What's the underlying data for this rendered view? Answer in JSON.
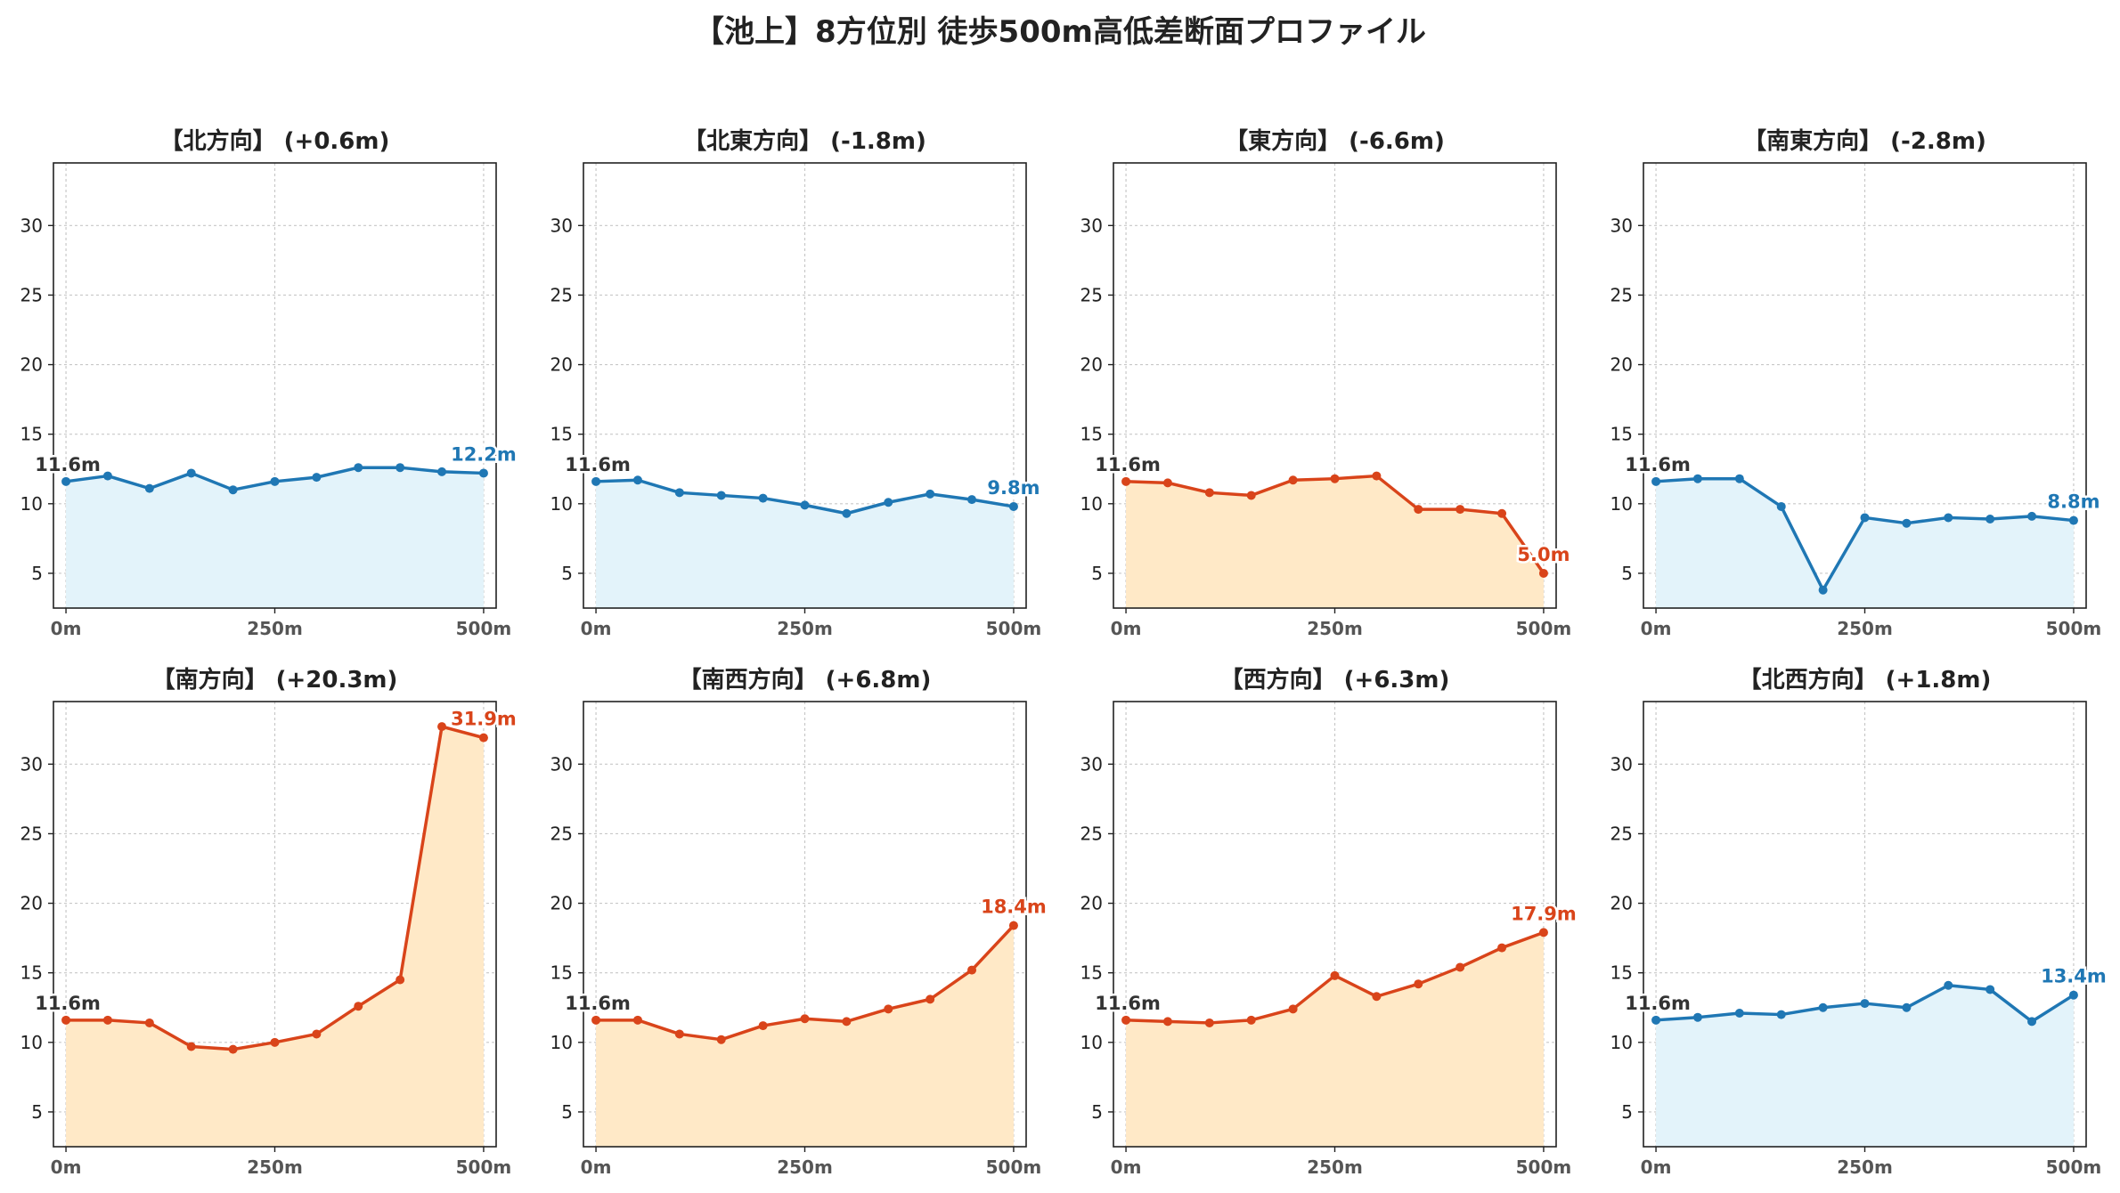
{
  "title": "【池上】8方位別 徒歩500m高低差断面プロファイル",
  "colors": {
    "up_line": "#d9441a",
    "up_fill": "#ffe9c7",
    "down_line": "#1f77b4",
    "down_fill": "#e3f3fa",
    "start_label": "#333333"
  },
  "chart_data": [
    {
      "type": "line",
      "title": "【北方向】 (+0.6m)",
      "x": [
        0,
        50,
        100,
        150,
        200,
        250,
        300,
        350,
        400,
        450,
        500
      ],
      "y": [
        11.6,
        12.0,
        11.1,
        12.2,
        11.0,
        11.6,
        11.9,
        12.6,
        12.6,
        12.3,
        12.2
      ],
      "start_label": "11.6m",
      "end_label": "12.2m",
      "trend": "down",
      "xticks": [
        "0m",
        "250m",
        "500m"
      ],
      "yticks": [
        5,
        10,
        15,
        20,
        25,
        30
      ],
      "ylim": [
        2.5,
        34.5
      ],
      "xlim": [
        -15,
        515
      ],
      "grid": true
    },
    {
      "type": "line",
      "title": "【北東方向】 (-1.8m)",
      "x": [
        0,
        50,
        100,
        150,
        200,
        250,
        300,
        350,
        400,
        450,
        500
      ],
      "y": [
        11.6,
        11.7,
        10.8,
        10.6,
        10.4,
        9.9,
        9.3,
        10.1,
        10.7,
        10.3,
        9.8
      ],
      "start_label": "11.6m",
      "end_label": "9.8m",
      "trend": "down",
      "xticks": [
        "0m",
        "250m",
        "500m"
      ],
      "yticks": [
        5,
        10,
        15,
        20,
        25,
        30
      ],
      "ylim": [
        2.5,
        34.5
      ],
      "xlim": [
        -15,
        515
      ],
      "grid": true
    },
    {
      "type": "line",
      "title": "【東方向】 (-6.6m)",
      "x": [
        0,
        50,
        100,
        150,
        200,
        250,
        300,
        350,
        400,
        450,
        500
      ],
      "y": [
        11.6,
        11.5,
        10.8,
        10.6,
        11.7,
        11.8,
        12.0,
        9.6,
        9.6,
        9.3,
        5.0
      ],
      "start_label": "11.6m",
      "end_label": "5.0m",
      "trend": "up",
      "xticks": [
        "0m",
        "250m",
        "500m"
      ],
      "yticks": [
        5,
        10,
        15,
        20,
        25,
        30
      ],
      "ylim": [
        2.5,
        34.5
      ],
      "xlim": [
        -15,
        515
      ],
      "grid": true
    },
    {
      "type": "line",
      "title": "【南東方向】 (-2.8m)",
      "x": [
        0,
        50,
        100,
        150,
        200,
        250,
        300,
        350,
        400,
        450,
        500
      ],
      "y": [
        11.6,
        11.8,
        11.8,
        9.8,
        3.8,
        9.0,
        8.6,
        9.0,
        8.9,
        9.1,
        8.8
      ],
      "start_label": "11.6m",
      "end_label": "8.8m",
      "trend": "down",
      "xticks": [
        "0m",
        "250m",
        "500m"
      ],
      "yticks": [
        5,
        10,
        15,
        20,
        25,
        30
      ],
      "ylim": [
        2.5,
        34.5
      ],
      "xlim": [
        -15,
        515
      ],
      "grid": true
    },
    {
      "type": "line",
      "title": "【南方向】 (+20.3m)",
      "x": [
        0,
        50,
        100,
        150,
        200,
        250,
        300,
        350,
        400,
        450,
        500
      ],
      "y": [
        11.6,
        11.6,
        11.4,
        9.7,
        9.5,
        10.0,
        10.6,
        12.6,
        14.5,
        32.7,
        31.9
      ],
      "start_label": "11.6m",
      "end_label": "31.9m",
      "trend": "up",
      "xticks": [
        "0m",
        "250m",
        "500m"
      ],
      "yticks": [
        5,
        10,
        15,
        20,
        25,
        30
      ],
      "ylim": [
        2.5,
        34.5
      ],
      "xlim": [
        -15,
        515
      ],
      "grid": true
    },
    {
      "type": "line",
      "title": "【南西方向】 (+6.8m)",
      "x": [
        0,
        50,
        100,
        150,
        200,
        250,
        300,
        350,
        400,
        450,
        500
      ],
      "y": [
        11.6,
        11.6,
        10.6,
        10.2,
        11.2,
        11.7,
        11.5,
        12.4,
        13.1,
        15.2,
        18.4
      ],
      "start_label": "11.6m",
      "end_label": "18.4m",
      "trend": "up",
      "xticks": [
        "0m",
        "250m",
        "500m"
      ],
      "yticks": [
        5,
        10,
        15,
        20,
        25,
        30
      ],
      "ylim": [
        2.5,
        34.5
      ],
      "xlim": [
        -15,
        515
      ],
      "grid": true
    },
    {
      "type": "line",
      "title": "【西方向】 (+6.3m)",
      "x": [
        0,
        50,
        100,
        150,
        200,
        250,
        300,
        350,
        400,
        450,
        500
      ],
      "y": [
        11.6,
        11.5,
        11.4,
        11.6,
        12.4,
        14.8,
        13.3,
        14.2,
        15.4,
        16.8,
        17.9
      ],
      "start_label": "11.6m",
      "end_label": "17.9m",
      "trend": "up",
      "xticks": [
        "0m",
        "250m",
        "500m"
      ],
      "yticks": [
        5,
        10,
        15,
        20,
        25,
        30
      ],
      "ylim": [
        2.5,
        34.5
      ],
      "xlim": [
        -15,
        515
      ],
      "grid": true
    },
    {
      "type": "line",
      "title": "【北西方向】 (+1.8m)",
      "x": [
        0,
        50,
        100,
        150,
        200,
        250,
        300,
        350,
        400,
        450,
        500
      ],
      "y": [
        11.6,
        11.8,
        12.1,
        12.0,
        12.5,
        12.8,
        12.5,
        14.1,
        13.8,
        11.5,
        13.4
      ],
      "start_label": "11.6m",
      "end_label": "13.4m",
      "trend": "down",
      "xticks": [
        "0m",
        "250m",
        "500m"
      ],
      "yticks": [
        5,
        10,
        15,
        20,
        25,
        30
      ],
      "ylim": [
        2.5,
        34.5
      ],
      "xlim": [
        -15,
        515
      ],
      "grid": true
    }
  ]
}
